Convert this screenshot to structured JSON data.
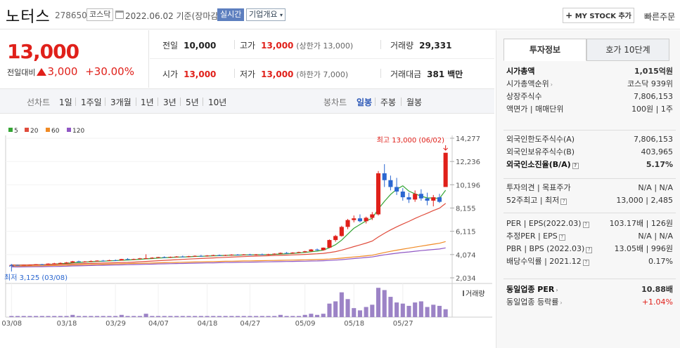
{
  "header": {
    "name": "노터스",
    "code": "278650",
    "market": "코스닥",
    "date": "2022.06.02 기준(장마감)",
    "realtime": "실시간",
    "company_info": "기업개요",
    "mystock": "MY STOCK 추가",
    "quick_order": "빠른주문"
  },
  "price": {
    "current": "13,000",
    "change_label": "전일대비",
    "change": "3,000",
    "change_pct": "+30.00%"
  },
  "quote": {
    "prev_label": "전일",
    "prev": "10,000",
    "high_label": "고가",
    "high": "13,000",
    "high_note": "(상한가 13,000)",
    "volume_label": "거래량",
    "volume": "29,331",
    "open_label": "시가",
    "open": "13,000",
    "low_label": "저가",
    "low": "13,000",
    "low_note": "(하한가 7,000)",
    "amount_label": "거래대금",
    "amount": "381",
    "amount_unit": "백만"
  },
  "periods": {
    "line": "선차트",
    "d1": "1일",
    "w1": "1주일",
    "m3": "3개월",
    "y1": "1년",
    "y3": "3년",
    "y5": "5년",
    "y10": "10년",
    "candle": "봉차트",
    "day": "일봉",
    "week": "주봉",
    "month": "월봉"
  },
  "chart_data": {
    "type": "candlestick",
    "legend": [
      {
        "name": "5",
        "color": "#35a535"
      },
      {
        "name": "20",
        "color": "#e04c3c"
      },
      {
        "name": "60",
        "color": "#f08a24"
      },
      {
        "name": "120",
        "color": "#9057c4"
      }
    ],
    "y_ticks": [
      "14,277",
      "12,236",
      "10,196",
      "8,155",
      "6,115",
      "4,074",
      "2,034"
    ],
    "y_min": 2034,
    "y_max": 14277,
    "x_ticks": [
      "03/08",
      "03/18",
      "03/29",
      "04/07",
      "04/18",
      "04/27",
      "05/09",
      "05/18",
      "05/27"
    ],
    "high_note": "최고 13,000 (06/02)",
    "low_note": "최저 3,125 (03/08)",
    "volume_label": "거래량",
    "candles": [
      [
        3125,
        3180,
        3100,
        3160
      ],
      [
        3160,
        3200,
        3120,
        3150
      ],
      [
        3150,
        3190,
        3110,
        3170
      ],
      [
        3170,
        3210,
        3140,
        3190
      ],
      [
        3190,
        3240,
        3160,
        3220
      ],
      [
        3220,
        3260,
        3180,
        3200
      ],
      [
        3200,
        3300,
        3180,
        3280
      ],
      [
        3280,
        3350,
        3250,
        3300
      ],
      [
        3300,
        3380,
        3260,
        3340
      ],
      [
        3340,
        3420,
        3300,
        3380
      ],
      [
        3380,
        3520,
        3340,
        3480
      ],
      [
        3480,
        3540,
        3400,
        3420
      ],
      [
        3420,
        3500,
        3380,
        3460
      ],
      [
        3460,
        3560,
        3420,
        3510
      ],
      [
        3510,
        3580,
        3460,
        3540
      ],
      [
        3540,
        3600,
        3480,
        3520
      ],
      [
        3520,
        3620,
        3500,
        3580
      ],
      [
        3580,
        3640,
        3520,
        3560
      ],
      [
        3560,
        3700,
        3540,
        3680
      ],
      [
        3680,
        3760,
        3600,
        3640
      ],
      [
        3640,
        3720,
        3600,
        3680
      ],
      [
        3680,
        3780,
        3640,
        3740
      ],
      [
        3740,
        4100,
        3700,
        3760
      ],
      [
        3760,
        3840,
        3700,
        3800
      ],
      [
        3800,
        3880,
        3760,
        3850
      ],
      [
        3850,
        3920,
        3800,
        3820
      ],
      [
        3820,
        3900,
        3780,
        3870
      ],
      [
        3870,
        3940,
        3820,
        3900
      ],
      [
        3900,
        3980,
        3860,
        3880
      ],
      [
        3880,
        3960,
        3840,
        3930
      ],
      [
        3930,
        4000,
        3880,
        3960
      ],
      [
        3960,
        4040,
        3900,
        3940
      ],
      [
        3940,
        4020,
        3900,
        3990
      ],
      [
        3990,
        4060,
        3940,
        4020
      ],
      [
        4020,
        4080,
        3960,
        3990
      ],
      [
        3990,
        4060,
        3950,
        4030
      ],
      [
        4030,
        4100,
        3980,
        4070
      ],
      [
        4070,
        4120,
        4000,
        4040
      ],
      [
        4040,
        4110,
        4000,
        4080
      ],
      [
        4080,
        4140,
        4020,
        4050
      ],
      [
        4050,
        4120,
        4000,
        4090
      ],
      [
        4090,
        4160,
        4040,
        4060
      ],
      [
        4060,
        4140,
        4020,
        4110
      ],
      [
        4110,
        4180,
        4060,
        4150
      ],
      [
        4150,
        4260,
        4100,
        4220
      ],
      [
        4220,
        4300,
        4160,
        4180
      ],
      [
        4180,
        4280,
        4140,
        4250
      ],
      [
        4250,
        4330,
        4200,
        4290
      ],
      [
        4290,
        4400,
        4240,
        4360
      ],
      [
        4360,
        4560,
        4320,
        4520
      ],
      [
        4520,
        4600,
        4400,
        4460
      ],
      [
        4460,
        4700,
        4420,
        4680
      ],
      [
        4680,
        5400,
        4640,
        5350
      ],
      [
        5350,
        5800,
        5200,
        5700
      ],
      [
        5700,
        6600,
        5650,
        6500
      ],
      [
        6500,
        7200,
        6300,
        7100
      ],
      [
        7100,
        7500,
        6900,
        7250
      ],
      [
        7250,
        7600,
        6900,
        7000
      ],
      [
        7000,
        7400,
        6800,
        7300
      ],
      [
        7300,
        7800,
        7100,
        7600
      ],
      [
        7600,
        11400,
        7500,
        11200
      ],
      [
        11200,
        12000,
        10000,
        10600
      ],
      [
        10600,
        11000,
        9700,
        10000
      ],
      [
        10000,
        10800,
        9300,
        9600
      ],
      [
        9600,
        9900,
        8800,
        9100
      ],
      [
        9100,
        9500,
        8600,
        8900
      ],
      [
        8900,
        9700,
        8700,
        9400
      ],
      [
        9400,
        9800,
        8800,
        9000
      ],
      [
        9000,
        9500,
        8400,
        8800
      ],
      [
        8800,
        9300,
        8300,
        9100
      ],
      [
        9100,
        9400,
        8600,
        8700
      ],
      [
        10000,
        13000,
        10000,
        13000
      ]
    ],
    "volume": [
      1,
      1,
      1,
      1,
      1,
      1,
      1,
      1,
      1,
      1,
      2,
      1,
      1,
      1,
      1,
      1,
      1,
      1,
      2,
      1,
      1,
      1,
      3,
      1,
      1,
      1,
      1,
      1,
      1,
      1,
      1,
      1,
      1,
      1,
      1,
      1,
      1,
      1,
      1,
      1,
      1,
      1,
      1,
      1,
      2,
      1,
      1,
      1,
      2,
      3,
      2,
      3,
      12,
      14,
      22,
      16,
      8,
      6,
      9,
      11,
      26,
      24,
      18,
      13,
      12,
      10,
      13,
      14,
      9,
      11,
      10,
      7
    ],
    "volume_max": 28
  },
  "right_panel": {
    "tab_invest": "투자정보",
    "tab_hoga": "호가 10단계",
    "cap_label": "시가총액",
    "cap": "1,015억원",
    "rank_label": "시가총액순위",
    "rank": "코스닥 939위",
    "shares_label": "상장주식수",
    "shares": "7,806,153",
    "par_label": "액면가 | 매매단위",
    "par": "100원 | 1주",
    "foreign_limit_label": "외국인한도주식수(A)",
    "foreign_limit": "7,806,153",
    "foreign_hold_label": "외국인보유주식수(B)",
    "foreign_hold": "403,965",
    "foreign_rate_label": "외국인소진율(B/A)",
    "foreign_rate": "5.17%",
    "opinion_label": "투자의견 | 목표주가",
    "opinion": "N/A | N/A",
    "w52_label": "52주최고 | 최저",
    "w52": "13,000 | 2,485",
    "per_label": "PER | EPS(2022.03)",
    "per": "103.17배 | 126원",
    "eper_label": "추정PER | EPS",
    "eper": "N/A | N/A",
    "pbr_label": "PBR | BPS (2022.03)",
    "pbr": "13.05배 | 996원",
    "div_label": "배당수익률 | 2021.12",
    "div": "0.17%",
    "ind_per_label": "동일업종 PER",
    "ind_per": "10.88배",
    "ind_rate_label": "동일업종 등락률",
    "ind_rate": "+1.04%",
    "qmark": "?",
    "arrow": "›"
  }
}
